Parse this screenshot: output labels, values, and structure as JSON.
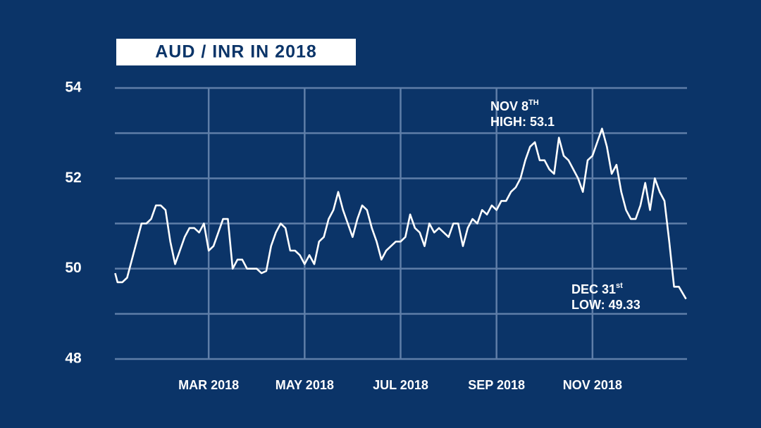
{
  "chart_data": {
    "type": "line",
    "title": "AUD / INR IN 2018",
    "color": "#ffffff",
    "x": [
      1.05,
      1.1,
      1.2,
      1.3,
      1.4,
      1.5,
      1.6,
      1.7,
      1.8,
      1.9,
      2.0,
      2.1,
      2.2,
      2.3,
      2.4,
      2.5,
      2.6,
      2.7,
      2.8,
      2.9,
      3.0,
      3.1,
      3.2,
      3.3,
      3.4,
      3.5,
      3.6,
      3.7,
      3.8,
      3.9,
      4.0,
      4.1,
      4.2,
      4.3,
      4.4,
      4.5,
      4.6,
      4.7,
      4.8,
      4.9,
      5.0,
      5.1,
      5.2,
      5.3,
      5.4,
      5.5,
      5.6,
      5.7,
      5.8,
      5.9,
      6.0,
      6.1,
      6.2,
      6.3,
      6.4,
      6.5,
      6.6,
      6.7,
      6.8,
      6.9,
      7.0,
      7.1,
      7.2,
      7.3,
      7.4,
      7.5,
      7.6,
      7.7,
      7.8,
      7.9,
      8.0,
      8.1,
      8.2,
      8.3,
      8.4,
      8.5,
      8.6,
      8.7,
      8.8,
      8.9,
      9.0,
      9.1,
      9.2,
      9.3,
      9.4,
      9.5,
      9.6,
      9.7,
      9.8,
      9.9,
      10.0,
      10.1,
      10.2,
      10.3,
      10.4,
      10.5,
      10.6,
      10.7,
      10.8,
      10.9,
      11.0,
      11.1,
      11.2,
      11.3,
      11.4,
      11.5,
      11.6,
      11.7,
      11.8,
      11.9,
      12.0,
      12.1,
      12.2,
      12.3,
      12.4,
      12.5,
      12.6,
      12.7,
      12.8,
      12.95
    ],
    "values": [
      49.9,
      49.7,
      49.7,
      49.8,
      50.2,
      50.6,
      51.0,
      51.0,
      51.1,
      51.4,
      51.4,
      51.3,
      50.6,
      50.1,
      50.4,
      50.7,
      50.9,
      50.9,
      50.8,
      51.0,
      50.4,
      50.5,
      50.8,
      51.1,
      51.1,
      50.0,
      50.2,
      50.2,
      50.0,
      50.0,
      50.0,
      49.9,
      49.95,
      50.5,
      50.8,
      51.0,
      50.9,
      50.4,
      50.4,
      50.3,
      50.1,
      50.3,
      50.1,
      50.6,
      50.7,
      51.1,
      51.3,
      51.7,
      51.3,
      51.0,
      50.7,
      51.1,
      51.4,
      51.3,
      50.9,
      50.6,
      50.2,
      50.4,
      50.5,
      50.6,
      50.6,
      50.7,
      51.2,
      50.9,
      50.8,
      50.5,
      51.0,
      50.8,
      50.9,
      50.8,
      50.7,
      51.0,
      51.0,
      50.5,
      50.9,
      51.1,
      51.0,
      51.3,
      51.2,
      51.4,
      51.3,
      51.5,
      51.5,
      51.7,
      51.8,
      52.0,
      52.4,
      52.7,
      52.8,
      52.4,
      52.4,
      52.2,
      52.1,
      52.9,
      52.5,
      52.4,
      52.2,
      52.0,
      51.7,
      52.4,
      52.5,
      52.8,
      53.1,
      52.7,
      52.1,
      52.3,
      51.7,
      51.3,
      51.1,
      51.1,
      51.4,
      51.9,
      51.3,
      52.0,
      51.7,
      51.5,
      50.6,
      49.6,
      49.6,
      49.33
    ],
    "xlim": [
      1,
      13
    ],
    "xticks": [
      {
        "value": 3,
        "label": "MAR 2018"
      },
      {
        "value": 5,
        "label": "MAY 2018"
      },
      {
        "value": 7,
        "label": "JUL 2018"
      },
      {
        "value": 9,
        "label": "SEP 2018"
      },
      {
        "value": 11,
        "label": "NOV 2018"
      }
    ],
    "ylim": [
      48,
      54
    ],
    "yticks": [
      48,
      50,
      52,
      54
    ],
    "minor_yticks": [
      49,
      51,
      53
    ],
    "grid": true,
    "annotations": [
      {
        "date": "NOV 8",
        "suffix": "TH",
        "label": "HIGH: 53.1"
      },
      {
        "date": "DEC 31",
        "suffix": "st",
        "label": "LOW: 49.33"
      }
    ]
  }
}
